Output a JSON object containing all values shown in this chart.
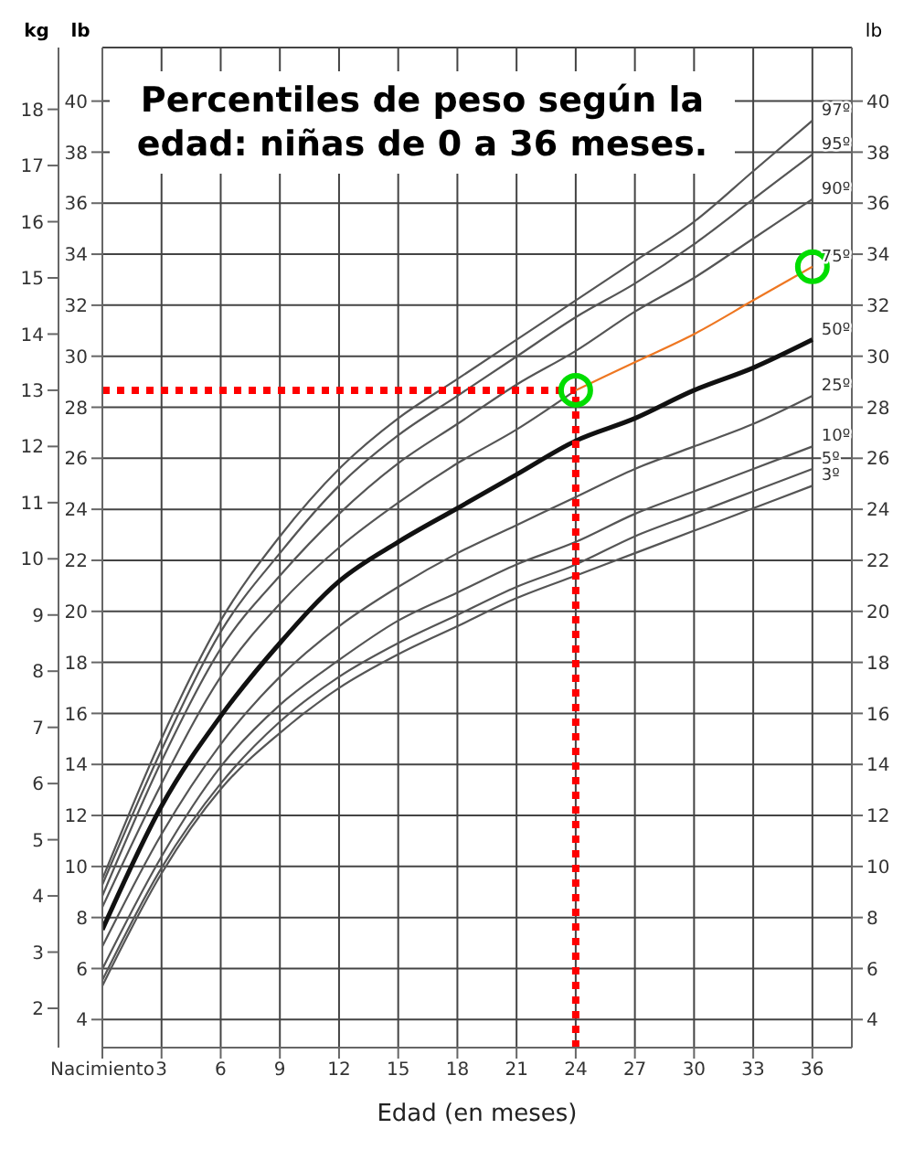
{
  "chart_data": {
    "type": "line",
    "title": "Percentiles de peso según la edad: niñas de 0 a 36 meses.",
    "xlabel": "Edad (en meses)",
    "ylabel": "kg",
    "y2label": "lb",
    "y3label": "lb",
    "x": [
      0,
      3,
      6,
      9,
      12,
      15,
      18,
      21,
      24,
      27,
      30,
      33,
      36
    ],
    "xlim": [
      0,
      38
    ],
    "xticks": [
      {
        "value": 0,
        "label": "Nacimiento"
      },
      3,
      6,
      9,
      12,
      15,
      18,
      21,
      24,
      27,
      30,
      33,
      36
    ],
    "ylim": [
      1.3,
      19.1
    ],
    "yticks": [
      2,
      3,
      4,
      5,
      6,
      7,
      8,
      9,
      10,
      11,
      12,
      13,
      14,
      15,
      16,
      17,
      18
    ],
    "y2lim": [
      2.9,
      42.1
    ],
    "y2ticks": [
      4,
      6,
      8,
      10,
      12,
      14,
      16,
      18,
      20,
      22,
      24,
      26,
      28,
      30,
      32,
      34,
      36,
      38,
      40
    ],
    "y3lim": [
      2.9,
      42.1
    ],
    "y3ticks": [
      4,
      6,
      8,
      10,
      12,
      14,
      16,
      18,
      20,
      22,
      24,
      26,
      28,
      30,
      32,
      34,
      36,
      38,
      40
    ],
    "grid": true,
    "legend": false,
    "marker": "none",
    "line_style": "solid",
    "series": [
      {
        "name": "97º",
        "color": "#555555",
        "values": [
          4.3,
          6.8,
          8.9,
          10.4,
          11.6,
          12.5,
          13.2,
          13.9,
          14.6,
          15.3,
          16.0,
          16.9,
          17.8
        ]
      },
      {
        "name": "95º",
        "color": "#555555",
        "values": [
          4.2,
          6.6,
          8.7,
          10.1,
          11.3,
          12.2,
          12.9,
          13.6,
          14.3,
          14.9,
          15.6,
          16.4,
          17.2
        ]
      },
      {
        "name": "90º",
        "color": "#555555",
        "values": [
          4.0,
          6.4,
          8.4,
          9.7,
          10.8,
          11.7,
          12.4,
          13.1,
          13.7,
          14.4,
          15.0,
          15.7,
          16.4
        ]
      },
      {
        "color": "#555555",
        "values": [
          3.8,
          6.0,
          7.9,
          9.2,
          10.2,
          11.0,
          11.7,
          12.3,
          13.0,
          null,
          null,
          null,
          null
        ]
      },
      {
        "name": "50º",
        "color": "#111111",
        "values": [
          3.4,
          5.6,
          7.2,
          8.5,
          9.6,
          10.3,
          10.9,
          11.5,
          12.1,
          12.5,
          13.0,
          13.4,
          13.9
        ]
      },
      {
        "name": "25º",
        "color": "#555555",
        "values": [
          3.1,
          5.1,
          6.7,
          7.9,
          8.8,
          9.5,
          10.1,
          10.6,
          11.1,
          11.6,
          12.0,
          12.4,
          12.9
        ]
      },
      {
        "name": "10º",
        "color": "#555555",
        "values": [
          2.7,
          4.7,
          6.3,
          7.4,
          8.2,
          8.9,
          9.4,
          9.9,
          10.3,
          10.8,
          11.2,
          11.6,
          12.0
        ]
      },
      {
        "name": "5º",
        "color": "#555555",
        "values": [
          2.5,
          4.5,
          6.0,
          7.1,
          7.9,
          8.5,
          9.0,
          9.5,
          9.9,
          10.4,
          10.8,
          11.2,
          11.6
        ]
      },
      {
        "name": "3º",
        "color": "#555555",
        "values": [
          2.4,
          4.4,
          5.9,
          6.9,
          7.7,
          8.3,
          8.8,
          9.3,
          9.7,
          10.1,
          10.5,
          10.9,
          11.3
        ]
      },
      {
        "name": "75º",
        "color": "#ee7722",
        "x": [
          24,
          27,
          30,
          33,
          36
        ],
        "values": [
          13.0,
          13.5,
          14.0,
          14.6,
          15.2
        ]
      },
      {
        "type": "line",
        "color": "#ff0000",
        "line_style": "dotted",
        "x": [
          0,
          24
        ],
        "values": [
          13.0,
          13.0
        ]
      },
      {
        "type": "line",
        "color": "#ff0000",
        "line_style": "dotted",
        "x": [
          24,
          24
        ],
        "values": [
          1.3,
          13.0
        ]
      },
      {
        "type": "scatter",
        "color": "#00dd00",
        "marker": "circle",
        "x": [
          24,
          36
        ],
        "values": [
          13.0,
          15.2
        ]
      }
    ]
  }
}
